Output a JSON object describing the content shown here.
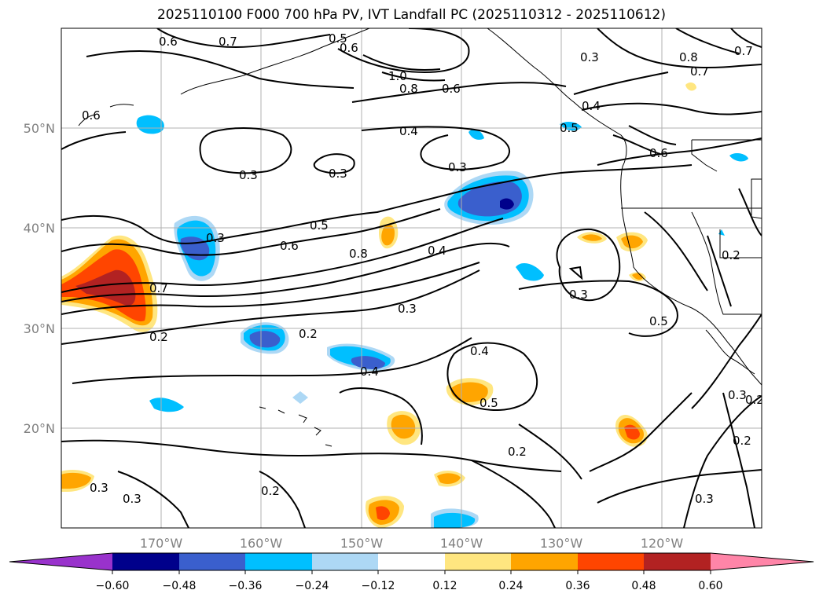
{
  "title": "2025110100 F000 700 hPa PV, IVT Landfall PC (2025110312 - 2025110612)",
  "longitude_labels": [
    "170°W",
    "160°W",
    "150°W",
    "140°W",
    "130°W",
    "120°W"
  ],
  "latitude_labels": [
    "50°N",
    "40°N",
    "30°N",
    "20°N"
  ],
  "colorbar": {
    "tick_labels": [
      "−0.60",
      "−0.48",
      "−0.36",
      "−0.24",
      "−0.12",
      "0.12",
      "0.24",
      "0.36",
      "0.48",
      "0.60"
    ],
    "colors": [
      "#9932cc",
      "#00008b",
      "#3a5fcd",
      "#00bfff",
      "#add8f5",
      "#ffffff",
      "#ffe680",
      "#ffa500",
      "#ff4500",
      "#b22222",
      "#ff85a8"
    ]
  },
  "contour_labels": [
    {
      "text": "0.6"
    },
    {
      "text": "0.7"
    },
    {
      "text": "0.5"
    },
    {
      "text": "0.6"
    },
    {
      "text": "1.0"
    },
    {
      "text": "0.8"
    },
    {
      "text": "0.6"
    },
    {
      "text": "0.3"
    },
    {
      "text": "0.8"
    },
    {
      "text": "0.7"
    },
    {
      "text": "0.7"
    },
    {
      "text": "0.6"
    },
    {
      "text": "0.4"
    },
    {
      "text": "0.5"
    },
    {
      "text": "0.4"
    },
    {
      "text": "0.3"
    },
    {
      "text": "0.3"
    },
    {
      "text": "0.3"
    },
    {
      "text": "0.6"
    },
    {
      "text": "0.5"
    },
    {
      "text": "0.6"
    },
    {
      "text": "0.8"
    },
    {
      "text": "0.4"
    },
    {
      "text": "0.3"
    },
    {
      "text": "0.7"
    },
    {
      "text": "0.2"
    },
    {
      "text": "0.2"
    },
    {
      "text": "0.3"
    },
    {
      "text": "0.2"
    },
    {
      "text": "0.4"
    },
    {
      "text": "0.4"
    },
    {
      "text": "0.5"
    },
    {
      "text": "0.3"
    },
    {
      "text": "0.5"
    },
    {
      "text": "0.2"
    },
    {
      "text": "0.3"
    },
    {
      "text": "0.3"
    },
    {
      "text": "0.2"
    },
    {
      "text": "0.3"
    },
    {
      "text": "0.2"
    },
    {
      "text": "0.3"
    },
    {
      "text": "0.2"
    }
  ]
}
